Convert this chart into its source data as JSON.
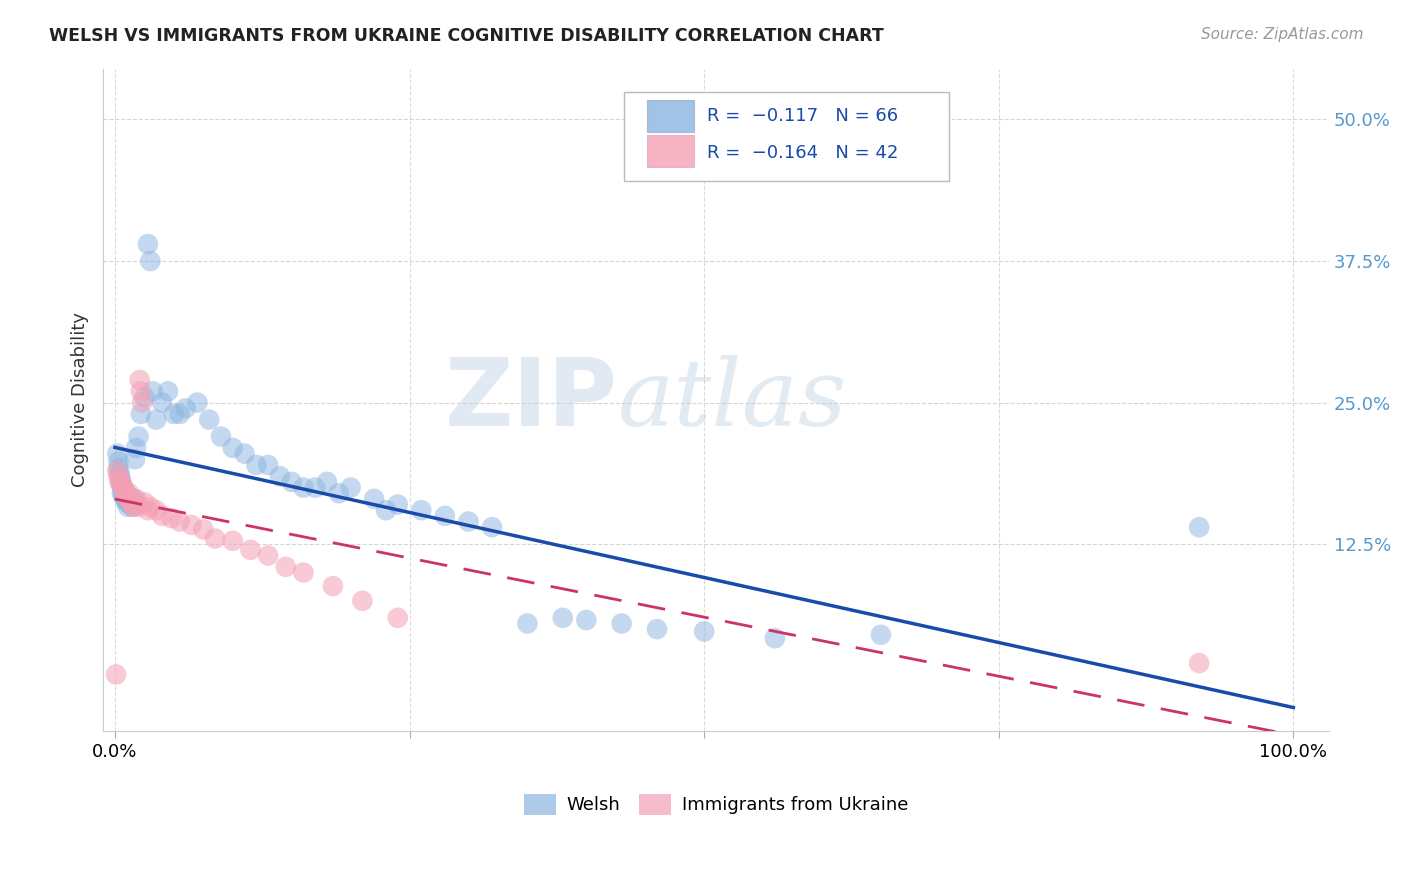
{
  "title": "WELSH VS IMMIGRANTS FROM UKRAINE COGNITIVE DISABILITY CORRELATION CHART",
  "source": "Source: ZipAtlas.com",
  "ylabel": "Cognitive Disability",
  "ytick_labels": [
    "12.5%",
    "25.0%",
    "37.5%",
    "50.0%"
  ],
  "ytick_values": [
    0.125,
    0.25,
    0.375,
    0.5
  ],
  "xlim": [
    -0.01,
    1.03
  ],
  "ylim": [
    -0.04,
    0.545
  ],
  "color_welsh": "#8ab4e0",
  "color_ukraine": "#f4a0b5",
  "color_welsh_line": "#1a4aaa",
  "color_ukraine_line": "#cc3366",
  "background": "#ffffff",
  "watermark_zip": "ZIP",
  "watermark_atlas": "atlas",
  "welsh_x": [
    0.002,
    0.003,
    0.003,
    0.004,
    0.004,
    0.005,
    0.005,
    0.006,
    0.006,
    0.007,
    0.007,
    0.008,
    0.008,
    0.009,
    0.01,
    0.01,
    0.011,
    0.012,
    0.013,
    0.014,
    0.015,
    0.016,
    0.017,
    0.018,
    0.02,
    0.022,
    0.025,
    0.028,
    0.03,
    0.032,
    0.035,
    0.04,
    0.045,
    0.05,
    0.055,
    0.06,
    0.07,
    0.08,
    0.09,
    0.1,
    0.11,
    0.12,
    0.13,
    0.14,
    0.15,
    0.16,
    0.17,
    0.18,
    0.19,
    0.2,
    0.22,
    0.23,
    0.24,
    0.26,
    0.28,
    0.3,
    0.32,
    0.35,
    0.38,
    0.4,
    0.43,
    0.46,
    0.5,
    0.56,
    0.65,
    0.92
  ],
  "welsh_y": [
    0.205,
    0.198,
    0.192,
    0.188,
    0.185,
    0.182,
    0.178,
    0.175,
    0.17,
    0.175,
    0.168,
    0.172,
    0.165,
    0.17,
    0.165,
    0.162,
    0.158,
    0.165,
    0.16,
    0.162,
    0.158,
    0.165,
    0.2,
    0.21,
    0.22,
    0.24,
    0.255,
    0.39,
    0.375,
    0.26,
    0.235,
    0.25,
    0.26,
    0.24,
    0.24,
    0.245,
    0.25,
    0.235,
    0.22,
    0.21,
    0.205,
    0.195,
    0.195,
    0.185,
    0.18,
    0.175,
    0.175,
    0.18,
    0.17,
    0.175,
    0.165,
    0.155,
    0.16,
    0.155,
    0.15,
    0.145,
    0.14,
    0.055,
    0.06,
    0.058,
    0.055,
    0.05,
    0.048,
    0.042,
    0.045,
    0.14
  ],
  "ukraine_x": [
    0.001,
    0.002,
    0.003,
    0.004,
    0.005,
    0.006,
    0.007,
    0.008,
    0.009,
    0.01,
    0.011,
    0.012,
    0.013,
    0.014,
    0.015,
    0.016,
    0.017,
    0.018,
    0.019,
    0.02,
    0.021,
    0.022,
    0.023,
    0.025,
    0.028,
    0.03,
    0.035,
    0.04,
    0.048,
    0.055,
    0.065,
    0.075,
    0.085,
    0.1,
    0.115,
    0.13,
    0.145,
    0.16,
    0.185,
    0.21,
    0.24,
    0.92
  ],
  "ukraine_y": [
    0.01,
    0.19,
    0.185,
    0.18,
    0.18,
    0.178,
    0.175,
    0.172,
    0.17,
    0.168,
    0.165,
    0.17,
    0.165,
    0.162,
    0.16,
    0.158,
    0.16,
    0.165,
    0.162,
    0.158,
    0.27,
    0.26,
    0.25,
    0.162,
    0.155,
    0.158,
    0.155,
    0.15,
    0.148,
    0.145,
    0.142,
    0.138,
    0.13,
    0.128,
    0.12,
    0.115,
    0.105,
    0.1,
    0.088,
    0.075,
    0.06,
    0.02
  ]
}
